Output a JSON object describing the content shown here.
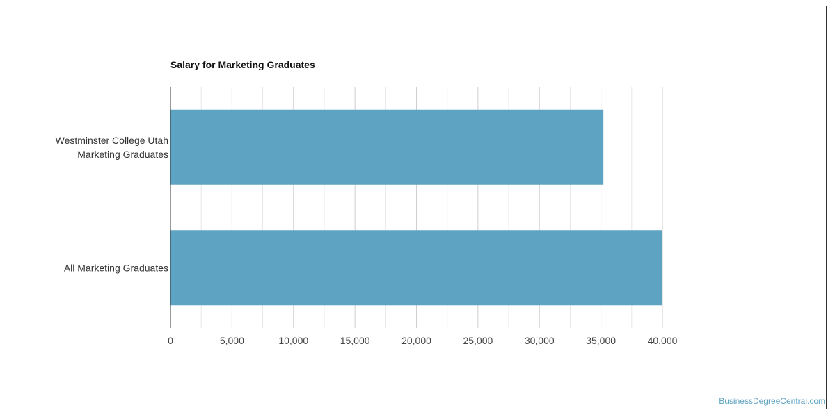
{
  "chart_data": {
    "type": "bar",
    "orientation": "horizontal",
    "title": "Salary for Marketing Graduates",
    "categories": [
      [
        "Westminster College Utah",
        "Marketing Graduates"
      ],
      [
        "All Marketing Graduates"
      ]
    ],
    "values": [
      35200,
      40000
    ],
    "xlim": [
      0,
      40000
    ],
    "xticks": [
      "0",
      "5,000",
      "10,000",
      "15,000",
      "20,000",
      "25,000",
      "30,000",
      "35,000",
      "40,000"
    ],
    "xtick_values": [
      0,
      5000,
      10000,
      15000,
      20000,
      25000,
      30000,
      35000,
      40000
    ],
    "grid": true,
    "bar_color": "#5ea3c2"
  },
  "watermark": "BusinessDegreeCentral.com"
}
